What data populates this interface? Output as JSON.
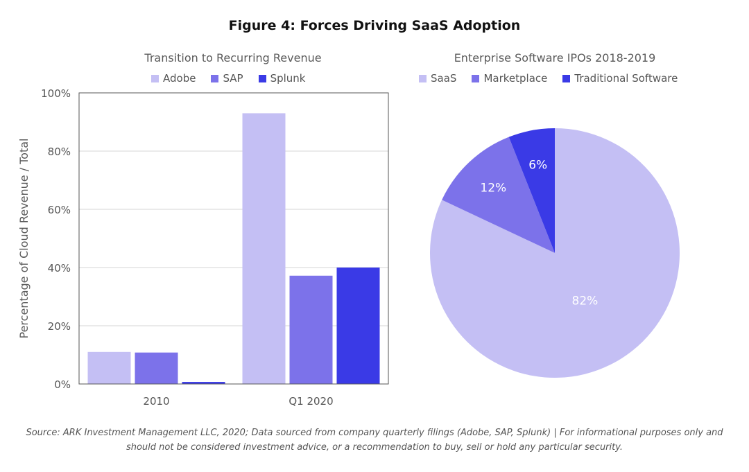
{
  "figure_title": "Figure 4: Forces Driving SaaS Adoption",
  "source_note": "Source: ARK Investment Management LLC, 2020; Data sourced from company quarterly filings (Adobe, SAP, Splunk)  |  For informational purposes only and should not be considered investment advice, or a recommendation to buy, sell or hold any particular security.",
  "chart_data": [
    {
      "type": "bar",
      "title": "Transition to Recurring Revenue",
      "xlabel": "",
      "ylabel": "Percentage of Cloud Revenue / Total",
      "categories": [
        "2010",
        "Q1 2020"
      ],
      "ylim": [
        0,
        100
      ],
      "yticks": [
        "0%",
        "20%",
        "40%",
        "60%",
        "80%",
        "100%"
      ],
      "grid": true,
      "legend": "top",
      "series": [
        {
          "name": "Adobe",
          "values": [
            11,
            93
          ],
          "color": "#c4bff4"
        },
        {
          "name": "SAP",
          "values": [
            10.8,
            37.2
          ],
          "color": "#7c72ea"
        },
        {
          "name": "Splunk",
          "values": [
            0.7,
            40
          ],
          "color": "#3a3ae6"
        }
      ]
    },
    {
      "type": "pie",
      "title": "Enterprise Software IPOs 2018-2019",
      "legend": "top",
      "slices": [
        {
          "name": "SaaS",
          "value": 82,
          "label": "82%",
          "color": "#c4bff4"
        },
        {
          "name": "Marketplace",
          "value": 12,
          "label": "12%",
          "color": "#7c72ea"
        },
        {
          "name": "Traditional Software",
          "value": 6,
          "label": "6%",
          "color": "#3a3ae6"
        }
      ]
    }
  ]
}
